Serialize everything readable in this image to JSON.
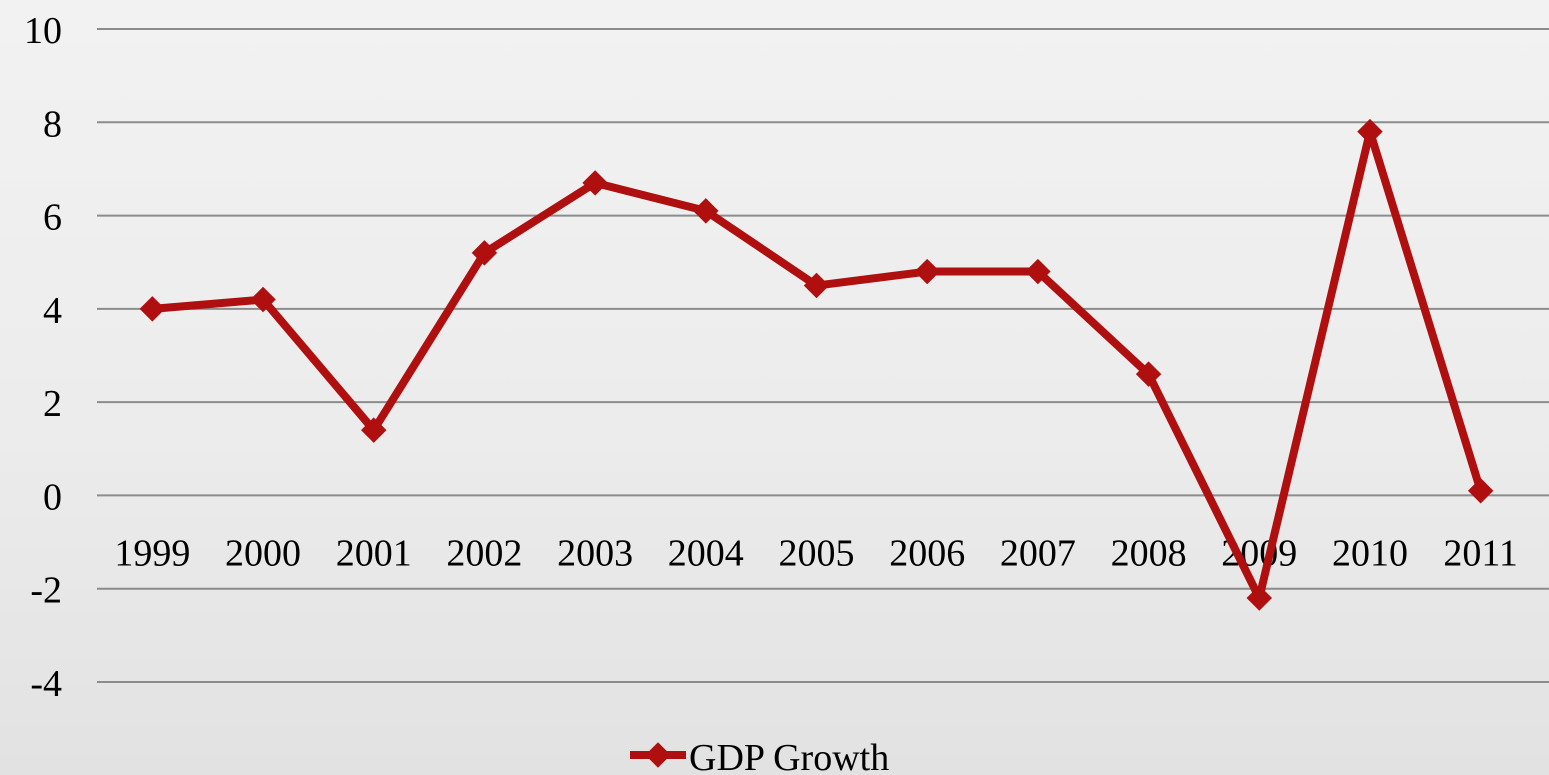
{
  "chart_data": {
    "type": "line",
    "title": "",
    "xlabel": "",
    "ylabel": "",
    "categories": [
      "1999",
      "2000",
      "2001",
      "2002",
      "2003",
      "2004",
      "2005",
      "2006",
      "2007",
      "2008",
      "2009",
      "2010",
      "2011"
    ],
    "series": [
      {
        "name": "GDP Growth",
        "color": "#b00f0f",
        "marker": "diamond",
        "values": [
          4.0,
          4.2,
          1.4,
          5.2,
          6.7,
          6.1,
          4.5,
          4.8,
          4.8,
          2.6,
          -2.2,
          7.8,
          0.1
        ]
      }
    ],
    "ylim": [
      -4,
      10
    ],
    "yticks": [
      "10",
      "8",
      "6",
      "4",
      "2",
      "0",
      "-2",
      "-4"
    ],
    "grid": true,
    "legend": "bottom",
    "category_labels_at": "y=0"
  }
}
